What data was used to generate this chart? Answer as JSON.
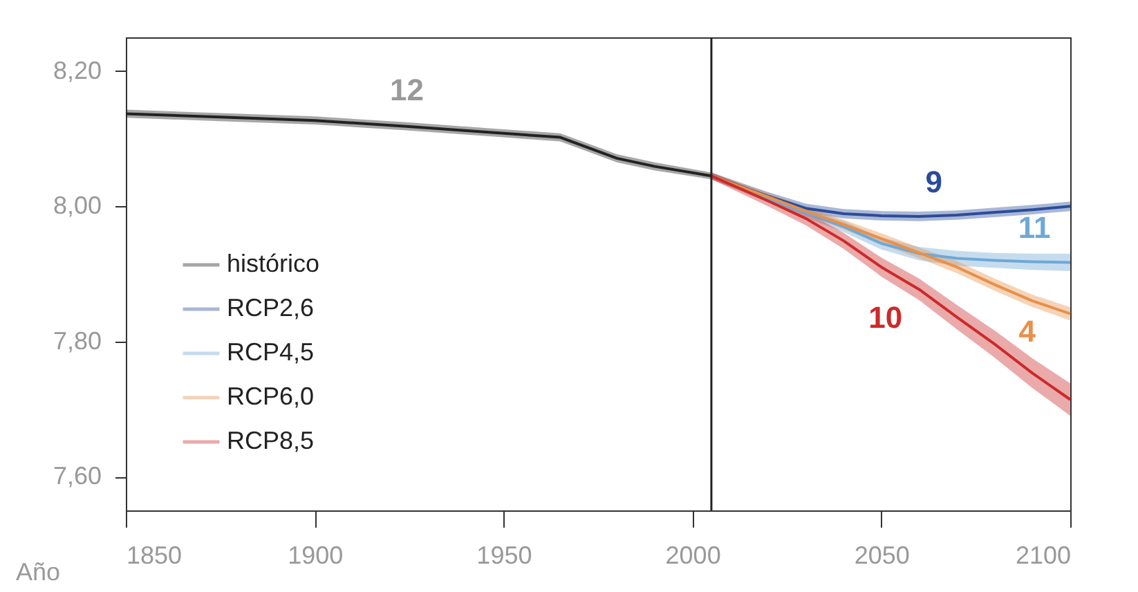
{
  "chart_data": {
    "type": "line",
    "xlabel": "Año",
    "xlim": [
      1850,
      2100
    ],
    "xticks": [
      1850,
      1900,
      1950,
      2000,
      2050,
      2100
    ],
    "ylim": [
      7.55,
      8.25
    ],
    "yticks": [
      {
        "value": 7.6,
        "label": "7,60"
      },
      {
        "value": 7.8,
        "label": "7,80"
      },
      {
        "value": 8.0,
        "label": "8,00"
      },
      {
        "value": 8.2,
        "label": "8,20"
      }
    ],
    "grid": false,
    "legend": "bottom left",
    "line_style": "solid",
    "marker": "none",
    "ref_lines": [
      {
        "axis": "x",
        "value": 2005,
        "color": "#222222"
      }
    ],
    "annotations": [
      "12",
      "9",
      "11",
      "4",
      "10"
    ],
    "series": [
      {
        "name": "histórico",
        "color": "#222222",
        "x": [
          1850,
          1875,
          1900,
          1925,
          1950,
          1965,
          1980,
          1990,
          2005
        ],
        "values": [
          8.137,
          8.132,
          8.127,
          8.118,
          8.108,
          8.102,
          8.071,
          8.059,
          8.045
        ],
        "lower": [
          8.131,
          8.126,
          8.121,
          8.112,
          8.102,
          8.096,
          8.065,
          8.053,
          8.04
        ],
        "upper": [
          8.143,
          8.138,
          8.133,
          8.124,
          8.114,
          8.108,
          8.077,
          8.065,
          8.05
        ]
      },
      {
        "name": "RCP2,6",
        "color": "#2b4c9b",
        "x": [
          2005,
          2020,
          2030,
          2040,
          2050,
          2060,
          2070,
          2080,
          2090,
          2100
        ],
        "values": [
          8.045,
          8.015,
          7.997,
          7.989,
          7.986,
          7.985,
          7.987,
          7.991,
          7.995,
          8.0
        ],
        "lower": [
          8.04,
          8.009,
          7.99,
          7.982,
          7.979,
          7.978,
          7.98,
          7.984,
          7.988,
          7.993
        ],
        "upper": [
          8.05,
          8.021,
          8.004,
          7.996,
          7.993,
          7.992,
          7.994,
          7.998,
          8.002,
          8.007
        ]
      },
      {
        "name": "RCP4,5",
        "color": "#6fa8d6",
        "x": [
          2005,
          2020,
          2030,
          2040,
          2050,
          2060,
          2070,
          2080,
          2090,
          2100
        ],
        "values": [
          8.045,
          8.012,
          7.99,
          7.97,
          7.945,
          7.93,
          7.923,
          7.92,
          7.918,
          7.917
        ],
        "lower": [
          8.04,
          8.006,
          7.983,
          7.962,
          7.936,
          7.92,
          7.912,
          7.909,
          7.906,
          7.904
        ],
        "upper": [
          8.05,
          8.018,
          7.997,
          7.978,
          7.954,
          7.94,
          7.934,
          7.931,
          7.93,
          7.93
        ]
      },
      {
        "name": "RCP6,0",
        "color": "#e8904a",
        "x": [
          2005,
          2020,
          2030,
          2040,
          2050,
          2060,
          2070,
          2080,
          2090,
          2100
        ],
        "values": [
          8.045,
          8.014,
          7.993,
          7.973,
          7.952,
          7.931,
          7.91,
          7.884,
          7.86,
          7.841
        ],
        "lower": [
          8.04,
          8.008,
          7.987,
          7.966,
          7.944,
          7.923,
          7.901,
          7.875,
          7.851,
          7.831
        ],
        "upper": [
          8.05,
          8.02,
          7.999,
          7.98,
          7.96,
          7.939,
          7.919,
          7.893,
          7.869,
          7.851
        ]
      },
      {
        "name": "RCP8,5",
        "color": "#cc2a2a",
        "x": [
          2005,
          2020,
          2030,
          2040,
          2050,
          2060,
          2070,
          2080,
          2090,
          2100
        ],
        "values": [
          8.045,
          8.008,
          7.982,
          7.949,
          7.91,
          7.877,
          7.836,
          7.796,
          7.753,
          7.714
        ],
        "lower": [
          8.04,
          8.0,
          7.972,
          7.937,
          7.896,
          7.861,
          7.818,
          7.776,
          7.731,
          7.69
        ],
        "upper": [
          8.05,
          8.016,
          7.992,
          7.961,
          7.924,
          7.893,
          7.854,
          7.816,
          7.775,
          7.738
        ]
      }
    ]
  }
}
